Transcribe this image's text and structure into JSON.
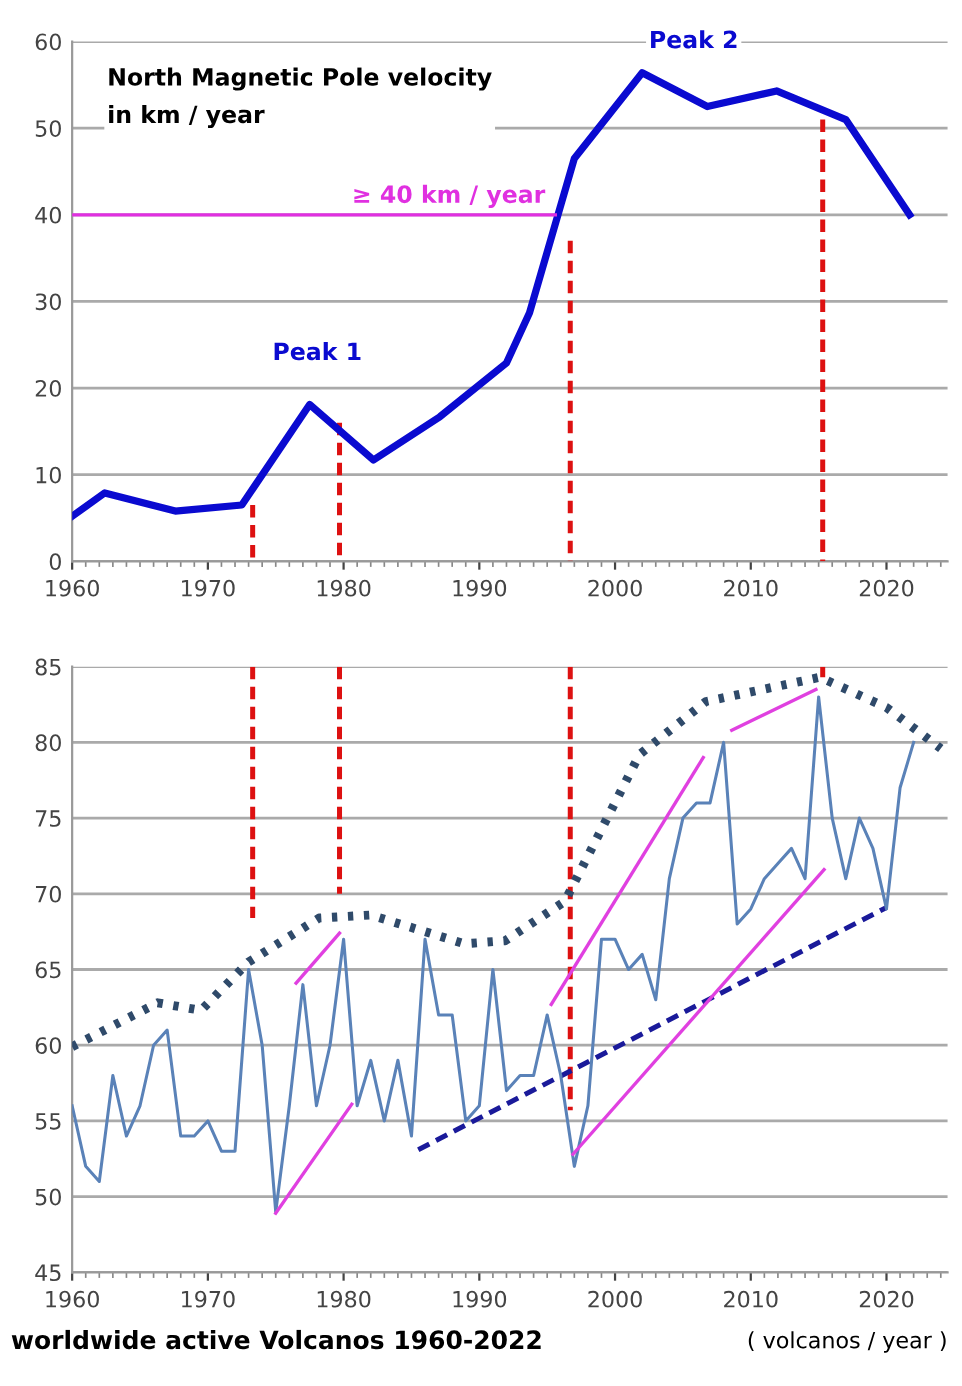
{
  "chart_data": [
    {
      "type": "line",
      "title": "North Magnetic Pole velocity\nin km / year",
      "xlim": [
        1960,
        2024.5
      ],
      "ylim": [
        0,
        60
      ],
      "xticks": [
        1960,
        1970,
        1980,
        1990,
        2000,
        2010,
        2020
      ],
      "yticks": [
        0,
        10,
        20,
        30,
        40,
        50,
        60
      ],
      "grid": "y",
      "legend": false,
      "marker": "none",
      "annotations": [
        "Peak 1",
        "Peak 2",
        "≥ 40 km / year"
      ],
      "series": [
        {
          "color": "#0a0ad0",
          "line_style": "solid",
          "x": [
            1960,
            1962.4,
            1967.6,
            1972.5,
            1977.5,
            1982.2,
            1987.1,
            1992,
            1993.7,
            1997,
            2002,
            2006.8,
            2011.9,
            2017,
            2021.7
          ],
          "values": [
            5.2,
            7.9,
            5.8,
            6.5,
            18.1,
            11.7,
            16.7,
            22.9,
            28.7,
            46.5,
            56.4,
            52.5,
            54.3,
            51,
            40
          ]
        },
        {
          "color": "#e030e0",
          "line_style": "solid",
          "x": [
            1960,
            1995.6
          ],
          "values": [
            40,
            40
          ]
        },
        {
          "color": "#dd1111",
          "line_style": "dashed",
          "x": [
            1973.3,
            1973.3
          ],
          "values": [
            6.5,
            0
          ]
        },
        {
          "color": "#dd1111",
          "line_style": "dashed",
          "x": [
            1979.7,
            1979.7
          ],
          "values": [
            16,
            0
          ]
        },
        {
          "color": "#dd1111",
          "line_style": "dashed",
          "x": [
            1996.7,
            1996.7
          ],
          "values": [
            37,
            0
          ]
        },
        {
          "color": "#dd1111",
          "line_style": "dashed",
          "x": [
            2015.3,
            2015.3
          ],
          "values": [
            51,
            0
          ]
        }
      ]
    },
    {
      "type": "line",
      "xlabel": "worldwide active Volcanos 1960-2022",
      "xlim": [
        1960,
        2024.5
      ],
      "ylim": [
        45,
        85
      ],
      "xticks": [
        1960,
        1970,
        1980,
        1990,
        2000,
        2010,
        2020
      ],
      "yticks": [
        45,
        50,
        55,
        60,
        65,
        70,
        75,
        80,
        85
      ],
      "grid": "y",
      "legend": false,
      "marker": "none",
      "annotations": [
        "( volcanos / year )"
      ],
      "series": [
        {
          "color": "#dd1111",
          "line_style": "dashed",
          "x": [
            1973.3,
            1973.3
          ],
          "values": [
            85,
            68.4
          ]
        },
        {
          "color": "#dd1111",
          "line_style": "dashed",
          "x": [
            1979.7,
            1979.7
          ],
          "values": [
            85,
            70
          ]
        },
        {
          "color": "#dd1111",
          "line_style": "dashed",
          "x": [
            1996.7,
            1996.7
          ],
          "values": [
            85,
            55.7
          ]
        },
        {
          "color": "#dd1111",
          "line_style": "dashed",
          "x": [
            2015.3,
            2015.3
          ],
          "values": [
            85,
            84.3
          ]
        },
        {
          "color": "#5a82b8",
          "line_style": "solid",
          "x": [
            1960,
            1961,
            1962,
            1963,
            1964,
            1965,
            1966,
            1967,
            1968,
            1969,
            1970,
            1971,
            1972,
            1973,
            1974,
            1975,
            1976,
            1977,
            1978,
            1979,
            1980,
            1981,
            1982,
            1983,
            1984,
            1985,
            1986,
            1987,
            1988,
            1989,
            1990,
            1991,
            1992,
            1993,
            1994,
            1995,
            1996,
            1997,
            1998,
            1999,
            2000,
            2001,
            2002,
            2003,
            2004,
            2005,
            2006,
            2007,
            2008,
            2009,
            2010,
            2011,
            2012,
            2013,
            2014,
            2015,
            2016,
            2017,
            2018,
            2019,
            2020,
            2021,
            2022
          ],
          "values": [
            56,
            52,
            51,
            58,
            54,
            56,
            60,
            61,
            54,
            54,
            55,
            53,
            53,
            65,
            60,
            49,
            56,
            64,
            56,
            60,
            67,
            56,
            59,
            55,
            59,
            54,
            67,
            62,
            62,
            55,
            56,
            65,
            57,
            58,
            58,
            62,
            58,
            52,
            56,
            67,
            67,
            65,
            66,
            63,
            71,
            75,
            76,
            76,
            80,
            68,
            69,
            71,
            72,
            73,
            71,
            83,
            75,
            71,
            75,
            73,
            69,
            77,
            80
          ]
        },
        {
          "color": "#2f4a6a",
          "line_style": "dotted",
          "x": [
            1960,
            1966.3,
            1969.5,
            1973,
            1978.2,
            1982,
            1988.9,
            1991.9,
            1996.3,
            2001.8,
            2006.7,
            2015.1,
            2020,
            2024
          ],
          "values": [
            59.9,
            62.8,
            62.3,
            65.5,
            68.4,
            68.6,
            66.7,
            66.9,
            69.5,
            79.2,
            82.7,
            84.3,
            82.3,
            79.6
          ]
        },
        {
          "color": "#1a1a9a",
          "line_style": "dashed",
          "x": [
            1985.5,
            2020
          ],
          "values": [
            53.1,
            69.1
          ]
        },
        {
          "color": "#e040e0",
          "line_style": "solid",
          "x": [
            1975,
            1980.6
          ],
          "values": [
            48.9,
            56.1
          ]
        },
        {
          "color": "#e040e0",
          "line_style": "solid",
          "x": [
            1976.5,
            1979.7
          ],
          "values": [
            64.1,
            67.4
          ]
        },
        {
          "color": "#e040e0",
          "line_style": "solid",
          "x": [
            1995.3,
            2006.5
          ],
          "values": [
            62.7,
            79
          ]
        },
        {
          "color": "#e040e0",
          "line_style": "solid",
          "x": [
            1996.9,
            2015.4
          ],
          "values": [
            52.8,
            71.6
          ]
        },
        {
          "color": "#e040e0",
          "line_style": "solid",
          "x": [
            2008.6,
            2014.8
          ],
          "values": [
            80.8,
            83.5
          ]
        }
      ]
    }
  ]
}
